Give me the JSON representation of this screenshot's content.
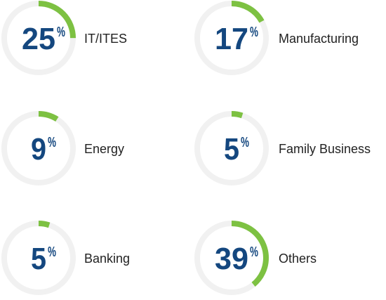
{
  "chart_data": {
    "type": "pie",
    "colors": {
      "fill": "#7dc142",
      "track": "#f1f1f1",
      "value_text": "#14477f",
      "label_text": "#222222"
    },
    "items": [
      {
        "category": "IT/ITES",
        "value": 25,
        "display": "25",
        "unit": "%"
      },
      {
        "category": "Manufacturing",
        "value": 17,
        "display": "17",
        "unit": "%"
      },
      {
        "category": "Energy",
        "value": 9,
        "display": "9",
        "unit": "%"
      },
      {
        "category": "Family Business",
        "value": 5,
        "display": "5",
        "unit": "%"
      },
      {
        "category": "Banking",
        "value": 5,
        "display": "5",
        "unit": "%"
      },
      {
        "category": "Others",
        "value": 39,
        "display": "39",
        "unit": "%"
      }
    ]
  }
}
